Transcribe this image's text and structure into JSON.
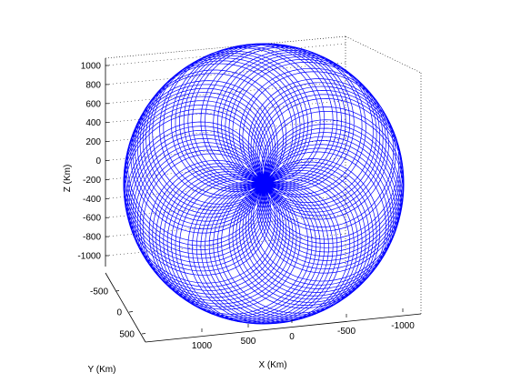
{
  "chart_data": {
    "type": "line",
    "dimensions": 3,
    "xlabel": "X (Km)",
    "ylabel": "Y (Km)",
    "zlabel": "Z (Km)",
    "x_ticks": [
      1000,
      500,
      0,
      -500,
      -1000
    ],
    "y_ticks": [
      -500,
      0,
      500
    ],
    "z_ticks": [
      1000,
      800,
      600,
      400,
      200,
      0,
      -200,
      -400,
      -600,
      -800,
      -1000
    ],
    "x_tick_labels": [
      "1000",
      "500",
      "0",
      "-500",
      "-1000"
    ],
    "y_tick_labels": [
      "-500",
      "0",
      "500"
    ],
    "z_tick_labels": [
      "1000",
      "800",
      "600",
      "400",
      "200",
      "0",
      "-200",
      "-400",
      "-600",
      "-800",
      "-1000"
    ],
    "xlim": [
      -1200,
      1200
    ],
    "ylim": [
      -1000,
      1000
    ],
    "zlim": [
      -1100,
      1100
    ],
    "grid": true,
    "box": true,
    "series": [
      {
        "description": "orbit trajectory winding repeatedly around a sphere of radius ~1100 km, forming a rosette of loops",
        "color": "#0000ff",
        "radius_km": 1100,
        "loops": 80
      }
    ]
  }
}
